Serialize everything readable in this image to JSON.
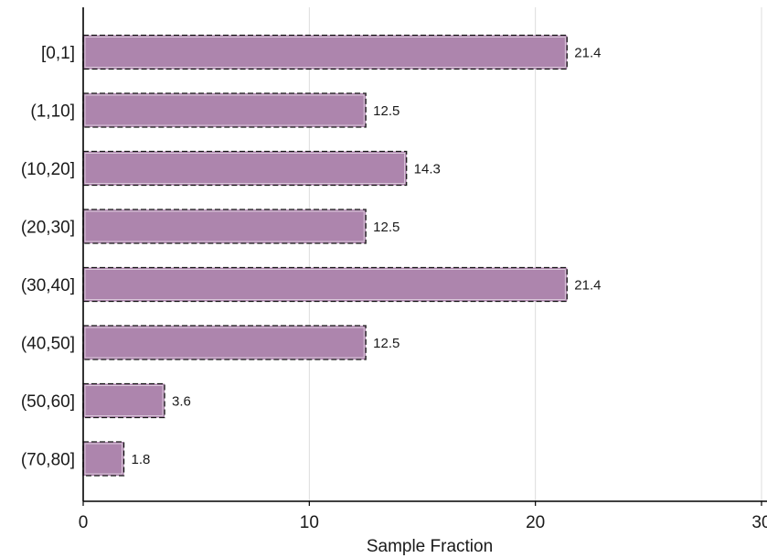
{
  "chart_data": {
    "type": "bar",
    "orientation": "horizontal",
    "categories": [
      "[0,1]",
      "(1,10]",
      "(10,20]",
      "(20,30]",
      "(30,40]",
      "(40,50]",
      "(50,60]",
      "(70,80]"
    ],
    "values": [
      21.4,
      12.5,
      14.3,
      12.5,
      21.4,
      12.5,
      3.6,
      1.8
    ],
    "value_labels": [
      "21.4",
      "12.5",
      "14.3",
      "12.5",
      "21.4",
      "12.5",
      "3.6",
      "1.8"
    ],
    "title": "",
    "xlabel": "Sample Fraction",
    "ylabel": "",
    "xlim": [
      0,
      30
    ],
    "xticks": [
      0,
      10,
      20,
      30
    ],
    "grid": "vertical",
    "legend": "none",
    "colors": {
      "bar_fill": "#ad85ad",
      "bar_edge": "#1a1a1a",
      "grid": "#dddddd",
      "axis": "#000000"
    }
  }
}
